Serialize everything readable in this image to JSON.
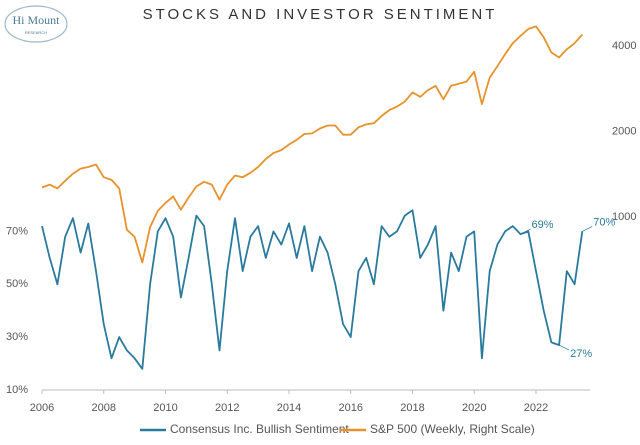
{
  "logo": {
    "name": "Hi Mount",
    "sub": "RESEARCH"
  },
  "chart_data": {
    "type": "line",
    "title": "STOCKS AND INVESTOR SENTIMENT",
    "xlim": [
      2006,
      2023.75
    ],
    "xticks": [
      2006,
      2008,
      2010,
      2012,
      2014,
      2016,
      2018,
      2020,
      2022
    ],
    "ylim": [
      10,
      150
    ],
    "yticks": [
      {
        "value": 10,
        "label": "10%"
      },
      {
        "value": 30,
        "label": "30%"
      },
      {
        "value": 50,
        "label": "50%"
      },
      {
        "value": 70,
        "label": "70%"
      }
    ],
    "y2lim": [
      245,
      4950
    ],
    "y2log": true,
    "y2ticks": [
      1000,
      2000,
      4000
    ],
    "grid": false,
    "legend": "bottom",
    "x": [
      2006,
      2006.25,
      2006.5,
      2006.75,
      2007,
      2007.25,
      2007.5,
      2007.75,
      2008,
      2008.25,
      2008.5,
      2008.75,
      2009,
      2009.25,
      2009.5,
      2009.75,
      2010,
      2010.25,
      2010.5,
      2010.75,
      2011,
      2011.25,
      2011.5,
      2011.75,
      2012,
      2012.25,
      2012.5,
      2012.75,
      2013,
      2013.25,
      2013.5,
      2013.75,
      2014,
      2014.25,
      2014.5,
      2014.75,
      2015,
      2015.25,
      2015.5,
      2015.75,
      2016,
      2016.25,
      2016.5,
      2016.75,
      2017,
      2017.25,
      2017.5,
      2017.75,
      2018,
      2018.25,
      2018.5,
      2018.75,
      2019,
      2019.25,
      2019.5,
      2019.75,
      2020,
      2020.25,
      2020.5,
      2020.75,
      2021,
      2021.25,
      2021.5,
      2021.75,
      2022,
      2022.25,
      2022.5,
      2022.75,
      2023,
      2023.25,
      2023.5
    ],
    "series": [
      {
        "name": "Consensus Inc. Bullish Sentiment",
        "color": "#2a7a9e",
        "values": [
          72,
          60,
          50,
          68,
          75,
          62,
          73,
          55,
          35,
          22,
          30,
          25,
          22,
          18,
          50,
          70,
          75,
          68,
          45,
          60,
          76,
          72,
          50,
          25,
          55,
          75,
          55,
          68,
          72,
          60,
          70,
          65,
          73,
          60,
          72,
          55,
          68,
          62,
          50,
          35,
          30,
          55,
          60,
          50,
          72,
          68,
          70,
          76,
          78,
          60,
          65,
          72,
          40,
          62,
          55,
          68,
          70,
          22,
          55,
          65,
          70,
          72,
          69,
          70,
          55,
          40,
          28,
          27,
          55,
          50,
          70
        ]
      },
      {
        "name": "S&P 500 (Weekly, Right Scale)",
        "color": "#e8922c",
        "axis": "y2",
        "values": [
          1270,
          1300,
          1260,
          1340,
          1420,
          1480,
          1500,
          1530,
          1380,
          1350,
          1260,
          900,
          850,
          690,
          920,
          1050,
          1120,
          1180,
          1060,
          1170,
          1280,
          1330,
          1300,
          1150,
          1300,
          1400,
          1380,
          1430,
          1500,
          1600,
          1680,
          1720,
          1800,
          1870,
          1960,
          1970,
          2050,
          2100,
          2100,
          1950,
          1950,
          2070,
          2120,
          2140,
          2270,
          2380,
          2450,
          2550,
          2750,
          2650,
          2800,
          2900,
          2600,
          2900,
          2950,
          3000,
          3250,
          2500,
          3100,
          3400,
          3750,
          4100,
          4350,
          4600,
          4700,
          4300,
          3800,
          3650,
          3900,
          4100,
          4400
        ]
      }
    ],
    "annotations": [
      {
        "x": 2021.5,
        "y": 69,
        "label": "69%"
      },
      {
        "x": 2022.75,
        "y": 27,
        "label": "27%"
      },
      {
        "x": 2023.5,
        "y": 70,
        "label": "70%"
      }
    ]
  }
}
